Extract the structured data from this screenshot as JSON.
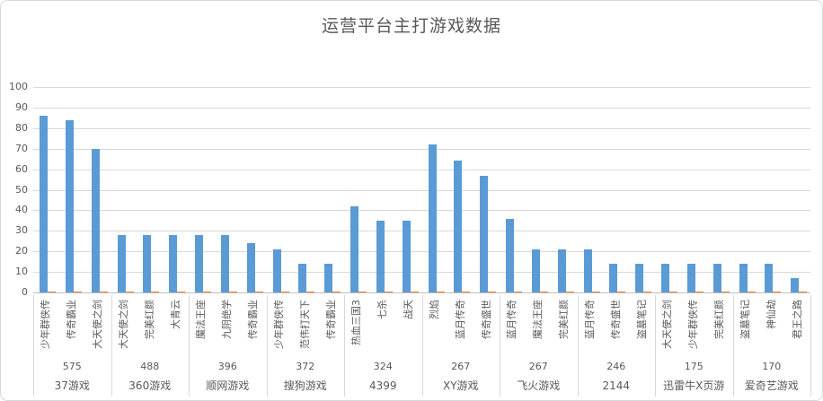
{
  "title": "运营平台主打游戏数据",
  "chart_data": {
    "type": "bar",
    "title": "运营平台主打游戏数据",
    "ylabel": "",
    "xlabel": "",
    "ylim": [
      0,
      100
    ],
    "yticks": [
      0,
      10,
      20,
      30,
      40,
      50,
      60,
      70,
      80,
      90,
      100
    ],
    "grid": true,
    "legend": "none",
    "bar_color": "#5b9bd5",
    "secondary_color": "#ed7d31",
    "secondary_series_value": 0.5,
    "groups": [
      {
        "platform": "37游戏",
        "total": "575",
        "games": [
          {
            "name": "少年群侠传",
            "value": 86
          },
          {
            "name": "传奇霸业",
            "value": 84
          },
          {
            "name": "大天使之剑",
            "value": 70
          }
        ]
      },
      {
        "platform": "360游戏",
        "total": "488",
        "games": [
          {
            "name": "大天使之剑",
            "value": 28
          },
          {
            "name": "完美红颜",
            "value": 28
          },
          {
            "name": "大青云",
            "value": 28
          }
        ]
      },
      {
        "platform": "顺网游戏",
        "total": "396",
        "games": [
          {
            "name": "魔法王座",
            "value": 28
          },
          {
            "name": "九阴绝学",
            "value": 28
          },
          {
            "name": "传奇霸业",
            "value": 24
          }
        ]
      },
      {
        "platform": "搜狗游戏",
        "total": "372",
        "games": [
          {
            "name": "少年群侠传",
            "value": 21
          },
          {
            "name": "范伟打天下",
            "value": 14
          },
          {
            "name": "传奇霸业",
            "value": 14
          }
        ]
      },
      {
        "platform": "4399",
        "total": "324",
        "games": [
          {
            "name": "热血三国3",
            "value": 42
          },
          {
            "name": "七杀",
            "value": 35
          },
          {
            "name": "战天",
            "value": 35
          }
        ]
      },
      {
        "platform": "XY游戏",
        "total": "267",
        "games": [
          {
            "name": "烈焰",
            "value": 72
          },
          {
            "name": "蓝月传奇",
            "value": 64
          },
          {
            "name": "传奇盛世",
            "value": 57
          }
        ]
      },
      {
        "platform": "飞火游戏",
        "total": "267",
        "games": [
          {
            "name": "蓝月传奇",
            "value": 36
          },
          {
            "name": "魔法王座",
            "value": 21
          },
          {
            "name": "完美红颜",
            "value": 21
          }
        ]
      },
      {
        "platform": "2144",
        "total": "246",
        "games": [
          {
            "name": "蓝月传奇",
            "value": 21
          },
          {
            "name": "传奇盛世",
            "value": 14
          },
          {
            "name": "盗墓笔记",
            "value": 14
          }
        ]
      },
      {
        "platform": "迅雷牛X页游",
        "total": "175",
        "games": [
          {
            "name": "大天使之剑",
            "value": 14
          },
          {
            "name": "少年群侠传",
            "value": 14
          },
          {
            "name": "完美红颜",
            "value": 14
          }
        ]
      },
      {
        "platform": "爱奇艺游戏",
        "total": "170",
        "games": [
          {
            "name": "盗墓笔记",
            "value": 14
          },
          {
            "name": "神仙劫",
            "value": 14
          },
          {
            "name": "君王之路",
            "value": 7
          }
        ]
      }
    ]
  }
}
